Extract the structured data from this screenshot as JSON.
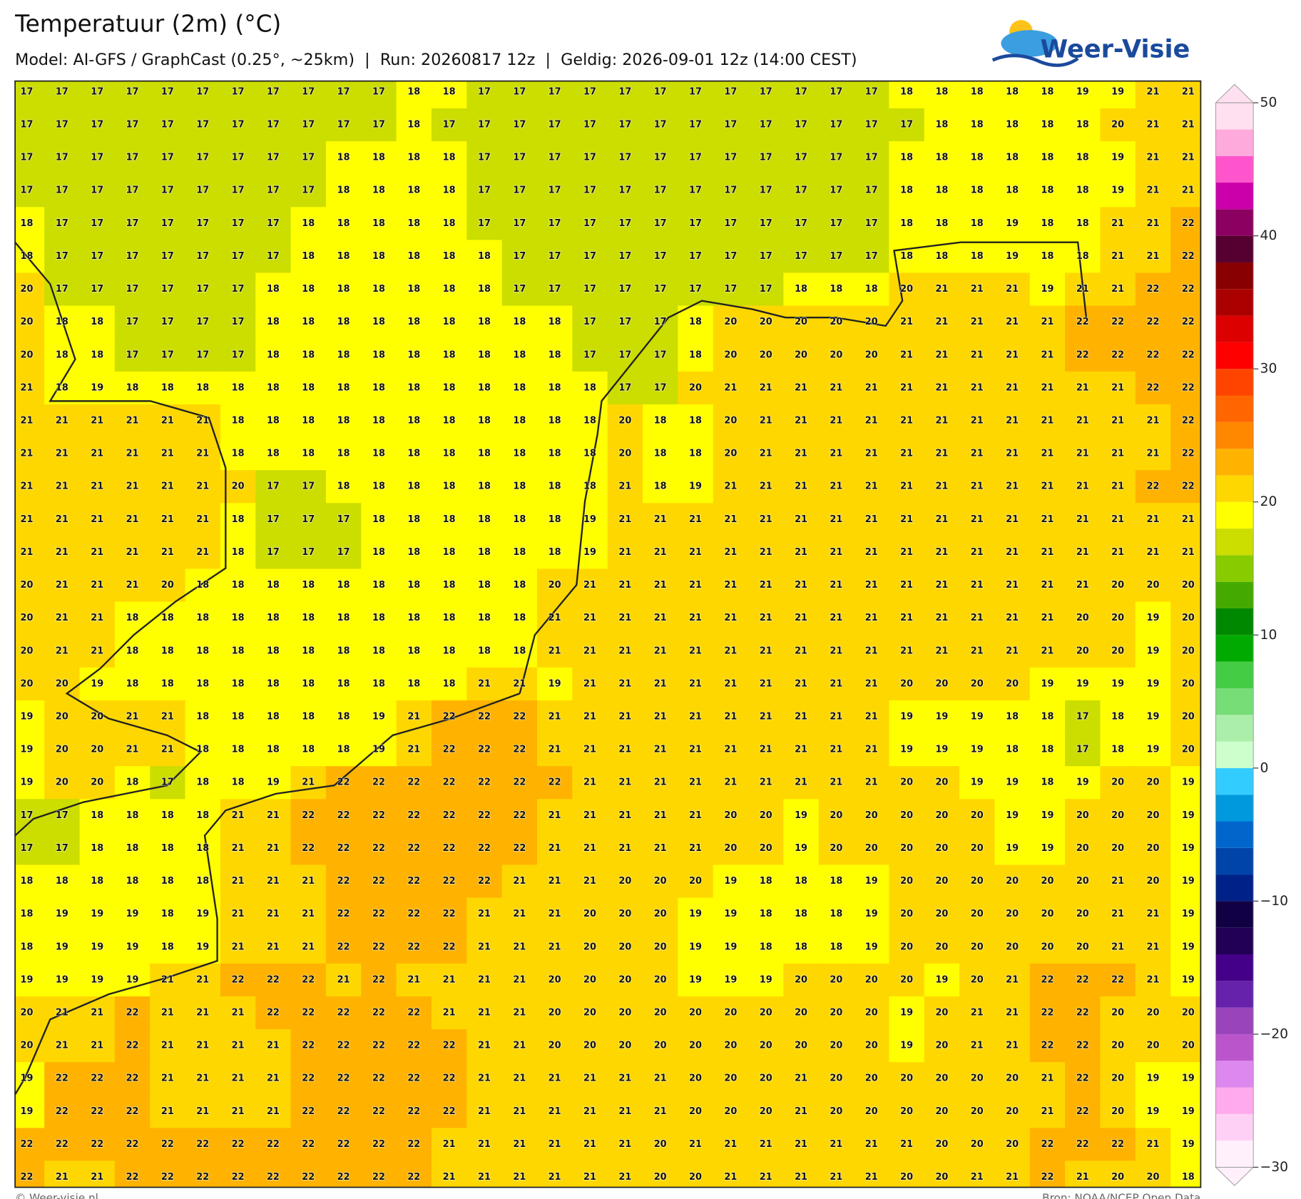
{
  "header": {
    "title": "Temperatuur (2m) (°C)",
    "subtitle": "Model: AI-GFS / GraphCast (0.25°, ~25km)  |  Run: 20260817 12z  |  Geldig: 2026-09-01 12z (14:00 CEST)",
    "logo": "Weer-Visie"
  },
  "map": {
    "type": "grid",
    "values": [
      [
        17,
        17,
        17,
        17,
        17,
        17,
        17,
        17,
        17,
        17,
        17,
        18,
        18,
        17,
        17,
        17,
        17,
        17,
        17,
        17,
        17,
        17,
        17,
        17,
        17,
        18,
        18,
        18,
        18,
        18,
        19,
        19,
        21,
        21
      ],
      [
        17,
        17,
        17,
        17,
        17,
        17,
        17,
        17,
        17,
        17,
        17,
        18,
        17,
        17,
        17,
        17,
        17,
        17,
        17,
        17,
        17,
        17,
        17,
        17,
        17,
        17,
        18,
        18,
        18,
        18,
        18,
        20,
        21,
        21
      ],
      [
        17,
        17,
        17,
        17,
        17,
        17,
        17,
        17,
        17,
        18,
        18,
        18,
        18,
        17,
        17,
        17,
        17,
        17,
        17,
        17,
        17,
        17,
        17,
        17,
        17,
        18,
        18,
        18,
        18,
        18,
        18,
        19,
        21,
        21
      ],
      [
        17,
        17,
        17,
        17,
        17,
        17,
        17,
        17,
        17,
        18,
        18,
        18,
        18,
        17,
        17,
        17,
        17,
        17,
        17,
        17,
        17,
        17,
        17,
        17,
        17,
        18,
        18,
        18,
        18,
        18,
        18,
        19,
        21,
        21
      ],
      [
        18,
        17,
        17,
        17,
        17,
        17,
        17,
        17,
        18,
        18,
        18,
        18,
        18,
        17,
        17,
        17,
        17,
        17,
        17,
        17,
        17,
        17,
        17,
        17,
        17,
        18,
        18,
        18,
        19,
        18,
        18,
        21,
        21,
        22
      ],
      [
        18,
        17,
        17,
        17,
        17,
        17,
        17,
        17,
        18,
        18,
        18,
        18,
        18,
        18,
        17,
        17,
        17,
        17,
        17,
        17,
        17,
        17,
        17,
        17,
        17,
        18,
        18,
        18,
        19,
        18,
        18,
        21,
        21,
        22
      ],
      [
        20,
        17,
        17,
        17,
        17,
        17,
        17,
        18,
        18,
        18,
        18,
        18,
        18,
        18,
        17,
        17,
        17,
        17,
        17,
        17,
        17,
        17,
        18,
        18,
        18,
        20,
        21,
        21,
        21,
        19,
        21,
        21,
        22,
        22
      ],
      [
        20,
        18,
        18,
        17,
        17,
        17,
        17,
        18,
        18,
        18,
        18,
        18,
        18,
        18,
        18,
        18,
        17,
        17,
        17,
        18,
        20,
        20,
        20,
        20,
        20,
        21,
        21,
        21,
        21,
        21,
        22,
        22,
        22,
        22
      ],
      [
        20,
        18,
        18,
        17,
        17,
        17,
        17,
        18,
        18,
        18,
        18,
        18,
        18,
        18,
        18,
        18,
        17,
        17,
        17,
        18,
        20,
        20,
        20,
        20,
        20,
        21,
        21,
        21,
        21,
        21,
        22,
        22,
        22,
        22
      ],
      [
        21,
        18,
        19,
        18,
        18,
        18,
        18,
        18,
        18,
        18,
        18,
        18,
        18,
        18,
        18,
        18,
        18,
        17,
        17,
        20,
        21,
        21,
        21,
        21,
        21,
        21,
        21,
        21,
        21,
        21,
        21,
        21,
        22,
        22
      ],
      [
        21,
        21,
        21,
        21,
        21,
        21,
        18,
        18,
        18,
        18,
        18,
        18,
        18,
        18,
        18,
        18,
        18,
        20,
        18,
        18,
        20,
        21,
        21,
        21,
        21,
        21,
        21,
        21,
        21,
        21,
        21,
        21,
        21,
        22
      ],
      [
        21,
        21,
        21,
        21,
        21,
        21,
        18,
        18,
        18,
        18,
        18,
        18,
        18,
        18,
        18,
        18,
        18,
        20,
        18,
        18,
        20,
        21,
        21,
        21,
        21,
        21,
        21,
        21,
        21,
        21,
        21,
        21,
        21,
        22
      ],
      [
        21,
        21,
        21,
        21,
        21,
        21,
        20,
        17,
        17,
        18,
        18,
        18,
        18,
        18,
        18,
        18,
        18,
        21,
        18,
        19,
        21,
        21,
        21,
        21,
        21,
        21,
        21,
        21,
        21,
        21,
        21,
        21,
        22,
        22
      ],
      [
        21,
        21,
        21,
        21,
        21,
        21,
        18,
        17,
        17,
        17,
        18,
        18,
        18,
        18,
        18,
        18,
        19,
        21,
        21,
        21,
        21,
        21,
        21,
        21,
        21,
        21,
        21,
        21,
        21,
        21,
        21,
        21,
        21,
        21
      ],
      [
        21,
        21,
        21,
        21,
        21,
        21,
        18,
        17,
        17,
        17,
        18,
        18,
        18,
        18,
        18,
        18,
        19,
        21,
        21,
        21,
        21,
        21,
        21,
        21,
        21,
        21,
        21,
        21,
        21,
        21,
        21,
        21,
        21,
        21
      ],
      [
        20,
        21,
        21,
        21,
        20,
        18,
        18,
        18,
        18,
        18,
        18,
        18,
        18,
        18,
        18,
        20,
        21,
        21,
        21,
        21,
        21,
        21,
        21,
        21,
        21,
        21,
        21,
        21,
        21,
        21,
        21,
        20,
        20,
        20
      ],
      [
        20,
        21,
        21,
        18,
        18,
        18,
        18,
        18,
        18,
        18,
        18,
        18,
        18,
        18,
        18,
        21,
        21,
        21,
        21,
        21,
        21,
        21,
        21,
        21,
        21,
        21,
        21,
        21,
        21,
        21,
        20,
        20,
        19,
        20
      ],
      [
        20,
        21,
        21,
        18,
        18,
        18,
        18,
        18,
        18,
        18,
        18,
        18,
        18,
        18,
        18,
        21,
        21,
        21,
        21,
        21,
        21,
        21,
        21,
        21,
        21,
        21,
        21,
        21,
        21,
        21,
        20,
        20,
        19,
        20
      ],
      [
        20,
        20,
        19,
        18,
        18,
        18,
        18,
        18,
        18,
        18,
        18,
        18,
        18,
        21,
        21,
        19,
        21,
        21,
        21,
        21,
        21,
        21,
        21,
        21,
        21,
        20,
        20,
        20,
        20,
        19,
        19,
        19,
        19,
        20
      ],
      [
        19,
        20,
        20,
        21,
        21,
        18,
        18,
        18,
        18,
        18,
        19,
        21,
        22,
        22,
        22,
        21,
        21,
        21,
        21,
        21,
        21,
        21,
        21,
        21,
        21,
        19,
        19,
        19,
        18,
        18,
        17,
        18,
        19,
        20
      ],
      [
        19,
        20,
        20,
        21,
        21,
        18,
        18,
        18,
        18,
        18,
        19,
        21,
        22,
        22,
        22,
        21,
        21,
        21,
        21,
        21,
        21,
        21,
        21,
        21,
        21,
        19,
        19,
        19,
        18,
        18,
        17,
        18,
        19,
        20
      ],
      [
        19,
        20,
        20,
        18,
        17,
        18,
        18,
        19,
        21,
        22,
        22,
        22,
        22,
        22,
        22,
        22,
        21,
        21,
        21,
        21,
        21,
        21,
        21,
        21,
        21,
        20,
        20,
        19,
        19,
        18,
        19,
        20,
        20,
        19
      ],
      [
        17,
        17,
        18,
        18,
        18,
        18,
        21,
        21,
        22,
        22,
        22,
        22,
        22,
        22,
        22,
        21,
        21,
        21,
        21,
        21,
        20,
        20,
        19,
        20,
        20,
        20,
        20,
        20,
        19,
        19,
        20,
        20,
        20,
        19
      ],
      [
        17,
        17,
        18,
        18,
        18,
        18,
        21,
        21,
        22,
        22,
        22,
        22,
        22,
        22,
        22,
        21,
        21,
        21,
        21,
        21,
        20,
        20,
        19,
        20,
        20,
        20,
        20,
        20,
        19,
        19,
        20,
        20,
        20,
        19
      ],
      [
        18,
        18,
        18,
        18,
        18,
        18,
        21,
        21,
        21,
        22,
        22,
        22,
        22,
        22,
        21,
        21,
        21,
        20,
        20,
        20,
        19,
        18,
        18,
        18,
        19,
        20,
        20,
        20,
        20,
        20,
        20,
        21,
        20,
        19
      ],
      [
        18,
        19,
        19,
        19,
        18,
        19,
        21,
        21,
        21,
        22,
        22,
        22,
        22,
        21,
        21,
        21,
        20,
        20,
        20,
        19,
        19,
        18,
        18,
        18,
        19,
        20,
        20,
        20,
        20,
        20,
        20,
        21,
        21,
        19
      ],
      [
        18,
        19,
        19,
        19,
        18,
        19,
        21,
        21,
        21,
        22,
        22,
        22,
        22,
        21,
        21,
        21,
        20,
        20,
        20,
        19,
        19,
        18,
        18,
        18,
        19,
        20,
        20,
        20,
        20,
        20,
        20,
        21,
        21,
        19
      ],
      [
        19,
        19,
        19,
        19,
        21,
        21,
        22,
        22,
        22,
        21,
        22,
        21,
        21,
        21,
        21,
        20,
        20,
        20,
        20,
        19,
        19,
        19,
        20,
        20,
        20,
        20,
        19,
        20,
        21,
        22,
        22,
        22,
        21,
        19
      ],
      [
        20,
        21,
        21,
        22,
        21,
        21,
        21,
        22,
        22,
        22,
        22,
        22,
        21,
        21,
        21,
        20,
        20,
        20,
        20,
        20,
        20,
        20,
        20,
        20,
        20,
        19,
        20,
        21,
        21,
        22,
        22,
        20,
        20,
        20
      ],
      [
        20,
        21,
        21,
        22,
        21,
        21,
        21,
        21,
        22,
        22,
        22,
        22,
        22,
        21,
        21,
        20,
        20,
        20,
        20,
        20,
        20,
        20,
        20,
        20,
        20,
        19,
        20,
        21,
        21,
        22,
        22,
        20,
        20,
        20
      ],
      [
        19,
        22,
        22,
        22,
        21,
        21,
        21,
        21,
        22,
        22,
        22,
        22,
        22,
        21,
        21,
        21,
        21,
        21,
        21,
        20,
        20,
        20,
        21,
        20,
        20,
        20,
        20,
        20,
        20,
        21,
        22,
        20,
        19,
        19
      ],
      [
        19,
        22,
        22,
        22,
        21,
        21,
        21,
        21,
        22,
        22,
        22,
        22,
        22,
        21,
        21,
        21,
        21,
        21,
        21,
        20,
        20,
        20,
        21,
        20,
        20,
        20,
        20,
        20,
        20,
        21,
        22,
        20,
        19,
        19
      ],
      [
        22,
        22,
        22,
        22,
        22,
        22,
        22,
        22,
        22,
        22,
        22,
        22,
        21,
        21,
        21,
        21,
        21,
        21,
        20,
        21,
        21,
        21,
        21,
        21,
        21,
        21,
        20,
        20,
        20,
        22,
        22,
        22,
        21,
        19
      ],
      [
        22,
        21,
        21,
        22,
        22,
        22,
        22,
        22,
        22,
        22,
        22,
        22,
        21,
        21,
        21,
        21,
        21,
        21,
        20,
        20,
        21,
        21,
        21,
        21,
        21,
        20,
        20,
        21,
        21,
        22,
        21,
        20,
        20,
        18
      ]
    ]
  },
  "colorbar": {
    "lim": [
      -30,
      50
    ],
    "ticks": [
      50,
      40,
      30,
      20,
      10,
      0,
      {
        "value": -10,
        "label": "−10"
      },
      {
        "value": -20,
        "label": "−20"
      },
      {
        "value": -30,
        "label": "−30"
      }
    ],
    "bounds": [
      -30,
      -28,
      -26,
      -24,
      -22,
      -20,
      -18,
      -16,
      -14,
      -12,
      -10,
      -8,
      -6,
      -4,
      -2,
      0,
      2,
      4,
      6,
      8,
      10,
      12,
      14,
      16,
      18,
      20,
      22,
      24,
      26,
      28,
      30,
      32,
      34,
      36,
      38,
      40,
      42,
      44,
      46,
      48,
      50
    ],
    "colors": [
      "#fff0fc",
      "#ffd0f5",
      "#ffaaee",
      "#dd88ee",
      "#bb55cc",
      "#9944bb",
      "#6622aa",
      "#440088",
      "#220055",
      "#110044",
      "#002288",
      "#0044aa",
      "#0066cc",
      "#0099dd",
      "#33ccff",
      "#ccffcc",
      "#aaeeaa",
      "#77dd77",
      "#44cc44",
      "#00aa00",
      "#008800",
      "#44aa00",
      "#88cc00",
      "#ccdd00",
      "#ffff00",
      "#ffd700",
      "#ffb300",
      "#ff8800",
      "#ff6600",
      "#ff4400",
      "#ff0000",
      "#dd0000",
      "#aa0000",
      "#880000",
      "#550030",
      "#8b0060",
      "#cc00aa",
      "#ff55cc",
      "#ffaadd",
      "#ffe0f0"
    ]
  },
  "footer": {
    "left": "© Weer-visie.nl",
    "right": "Bron: NOAA/NCEP Open Data"
  }
}
